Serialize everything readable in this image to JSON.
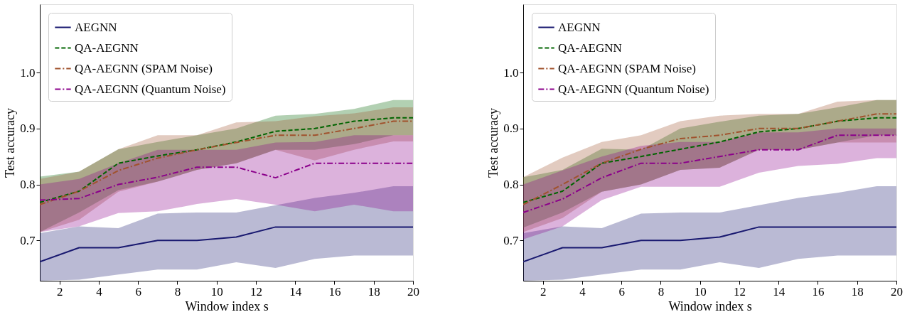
{
  "chart_data": [
    {
      "type": "line",
      "xlabel": "Window index s",
      "ylabel": "Test accuracy",
      "x": [
        1,
        3,
        5,
        7,
        9,
        11,
        13,
        15,
        17,
        19,
        20
      ],
      "xlim": [
        1,
        20
      ],
      "xticks": [
        2,
        4,
        6,
        8,
        10,
        12,
        14,
        16,
        18,
        20
      ],
      "ylim": [
        0.628,
        1.122
      ],
      "yticks": [
        0.7,
        0.8,
        0.9,
        {
          "value": 1.0,
          "label": "1.0"
        }
      ],
      "grid": false,
      "legend": "top left",
      "marker": "none",
      "series": [
        {
          "name": "AEGNN",
          "color": "#191970",
          "line_style": "solid",
          "values": [
            0.662,
            0.687,
            0.687,
            0.7,
            0.7,
            0.706,
            0.724,
            0.724,
            0.724,
            0.724,
            0.724
          ],
          "lower": [
            0.628,
            0.63,
            0.639,
            0.648,
            0.648,
            0.661,
            0.651,
            0.667,
            0.673,
            0.673,
            0.673
          ],
          "upper": [
            0.713,
            0.725,
            0.722,
            0.748,
            0.75,
            0.75,
            0.763,
            0.776,
            0.785,
            0.797,
            0.797
          ]
        },
        {
          "name": "QA-AEGNN",
          "color": "#006400",
          "line_style": "dashed",
          "values": [
            0.768,
            0.788,
            0.838,
            0.851,
            0.862,
            0.876,
            0.895,
            0.9,
            0.913,
            0.919,
            0.919
          ],
          "lower": [
            0.715,
            0.75,
            0.79,
            0.805,
            0.826,
            0.838,
            0.862,
            0.862,
            0.872,
            0.888,
            0.888
          ],
          "upper": [
            0.814,
            0.823,
            0.863,
            0.876,
            0.888,
            0.9,
            0.923,
            0.926,
            0.935,
            0.951,
            0.951
          ]
        },
        {
          "name": "QA-AEGNN (SPAM Noise)",
          "color": "#a0522d",
          "line_style": "dashdot",
          "values": [
            0.764,
            0.788,
            0.825,
            0.847,
            0.862,
            0.875,
            0.888,
            0.888,
            0.9,
            0.913,
            0.913
          ],
          "lower": [
            0.715,
            0.737,
            0.787,
            0.805,
            0.826,
            0.838,
            0.862,
            0.843,
            0.862,
            0.877,
            0.877
          ],
          "upper": [
            0.81,
            0.823,
            0.863,
            0.888,
            0.888,
            0.911,
            0.913,
            0.922,
            0.927,
            0.938,
            0.938
          ]
        },
        {
          "name": "QA-AEGNN (Quantum Noise)",
          "color": "#8b008b",
          "line_style": "dashdot",
          "values": [
            0.772,
            0.775,
            0.8,
            0.813,
            0.831,
            0.831,
            0.812,
            0.838,
            0.838,
            0.838,
            0.838
          ],
          "lower": [
            0.715,
            0.725,
            0.749,
            0.752,
            0.765,
            0.774,
            0.764,
            0.752,
            0.764,
            0.752,
            0.752
          ],
          "upper": [
            0.8,
            0.81,
            0.838,
            0.862,
            0.862,
            0.862,
            0.875,
            0.876,
            0.888,
            0.888,
            0.888
          ]
        }
      ]
    },
    {
      "type": "line",
      "xlabel": "Window index s",
      "ylabel": "Test accuracy",
      "x": [
        1,
        3,
        5,
        7,
        9,
        11,
        13,
        15,
        17,
        19,
        20
      ],
      "xlim": [
        1,
        20
      ],
      "xticks": [
        2,
        4,
        6,
        8,
        10,
        12,
        14,
        16,
        18,
        20
      ],
      "ylim": [
        0.628,
        1.122
      ],
      "yticks": [
        0.7,
        0.8,
        0.9,
        {
          "value": 1.0,
          "label": "1.0"
        }
      ],
      "grid": false,
      "legend": "top left",
      "marker": "none",
      "series": [
        {
          "name": "AEGNN",
          "color": "#191970",
          "line_style": "solid",
          "values": [
            0.662,
            0.687,
            0.687,
            0.7,
            0.7,
            0.706,
            0.724,
            0.724,
            0.724,
            0.724,
            0.724
          ],
          "lower": [
            0.628,
            0.63,
            0.639,
            0.648,
            0.648,
            0.661,
            0.651,
            0.667,
            0.673,
            0.673,
            0.673
          ],
          "upper": [
            0.713,
            0.725,
            0.722,
            0.748,
            0.75,
            0.75,
            0.763,
            0.776,
            0.785,
            0.797,
            0.797
          ]
        },
        {
          "name": "QA-AEGNN",
          "color": "#006400",
          "line_style": "dashed",
          "values": [
            0.768,
            0.788,
            0.838,
            0.85,
            0.863,
            0.876,
            0.894,
            0.9,
            0.913,
            0.919,
            0.919
          ],
          "lower": [
            0.723,
            0.75,
            0.787,
            0.8,
            0.826,
            0.83,
            0.862,
            0.862,
            0.875,
            0.888,
            0.888
          ],
          "upper": [
            0.813,
            0.826,
            0.864,
            0.862,
            0.9,
            0.912,
            0.923,
            0.926,
            0.938,
            0.951,
            0.951
          ]
        },
        {
          "name": "QA-AEGNN (SPAM Noise)",
          "color": "#a0522d",
          "line_style": "dashdot",
          "values": [
            0.764,
            0.8,
            0.838,
            0.863,
            0.882,
            0.888,
            0.9,
            0.9,
            0.913,
            0.926,
            0.926
          ],
          "lower": [
            0.715,
            0.74,
            0.787,
            0.8,
            0.826,
            0.83,
            0.862,
            0.862,
            0.875,
            0.875,
            0.875
          ],
          "upper": [
            0.813,
            0.848,
            0.876,
            0.888,
            0.913,
            0.923,
            0.926,
            0.926,
            0.948,
            0.951,
            0.951
          ]
        },
        {
          "name": "QA-AEGNN (Quantum Noise)",
          "color": "#8b008b",
          "line_style": "dashdot",
          "values": [
            0.75,
            0.774,
            0.812,
            0.838,
            0.838,
            0.85,
            0.862,
            0.862,
            0.888,
            0.888,
            0.888
          ],
          "lower": [
            0.702,
            0.725,
            0.772,
            0.796,
            0.796,
            0.796,
            0.821,
            0.833,
            0.837,
            0.847,
            0.847
          ],
          "upper": [
            0.8,
            0.825,
            0.85,
            0.869,
            0.876,
            0.876,
            0.893,
            0.893,
            0.9,
            0.9,
            0.9
          ]
        }
      ]
    }
  ]
}
